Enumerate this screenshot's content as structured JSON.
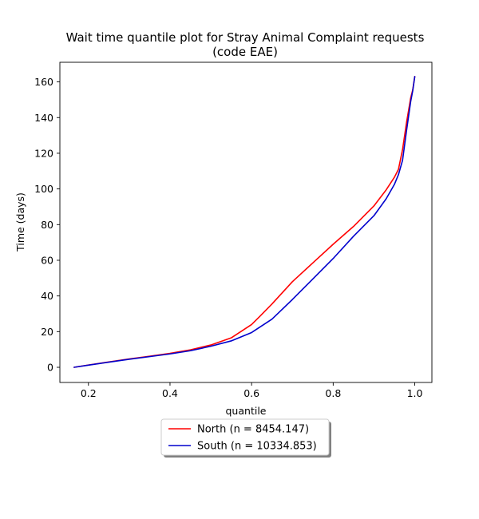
{
  "chart_data": {
    "type": "line",
    "title": "Wait time quantile plot for Stray Animal Complaint  requests",
    "subtitle": "(code EAE)",
    "xlabel": "quantile",
    "ylabel": "Time (days)",
    "xlim": [
      0.13,
      1.042
    ],
    "ylim": [
      -8.5,
      171
    ],
    "xticks": [
      0.2,
      0.4,
      0.6,
      0.8,
      1.0
    ],
    "xtick_labels": [
      "0.2",
      "0.4",
      "0.6",
      "0.8",
      "1.0"
    ],
    "yticks": [
      0,
      20,
      40,
      60,
      80,
      100,
      120,
      140,
      160
    ],
    "ytick_labels": [
      "0",
      "20",
      "40",
      "60",
      "80",
      "100",
      "120",
      "140",
      "160"
    ],
    "grid": false,
    "legend_position": "below-center",
    "series": [
      {
        "name": "North (n = 8454.147)",
        "color": "#ff0000",
        "x": [
          0.165,
          0.2,
          0.25,
          0.3,
          0.35,
          0.4,
          0.45,
          0.5,
          0.55,
          0.6,
          0.62,
          0.65,
          0.7,
          0.75,
          0.8,
          0.85,
          0.9,
          0.93,
          0.95,
          0.96,
          0.97,
          0.98,
          0.99,
          0.995,
          1.0
        ],
        "y": [
          0,
          1.3,
          3,
          4.7,
          6.2,
          7.8,
          9.8,
          12.5,
          16.5,
          24,
          28.5,
          35.5,
          48,
          58.5,
          69,
          79,
          90.5,
          99.5,
          106.5,
          111,
          122,
          137.5,
          151,
          155.5,
          163
        ]
      },
      {
        "name": "South (n = 10334.853)",
        "color": "#0000cd",
        "x": [
          0.165,
          0.2,
          0.25,
          0.3,
          0.35,
          0.4,
          0.45,
          0.5,
          0.55,
          0.6,
          0.65,
          0.7,
          0.75,
          0.8,
          0.85,
          0.9,
          0.93,
          0.95,
          0.96,
          0.97,
          0.98,
          0.99,
          0.995,
          1.0
        ],
        "y": [
          0,
          1.2,
          2.9,
          4.5,
          6,
          7.5,
          9.3,
          11.8,
          14.8,
          19.5,
          27,
          38,
          49.5,
          61,
          73.5,
          85,
          94.5,
          102.5,
          108,
          116,
          133,
          149,
          155,
          163
        ]
      }
    ]
  }
}
